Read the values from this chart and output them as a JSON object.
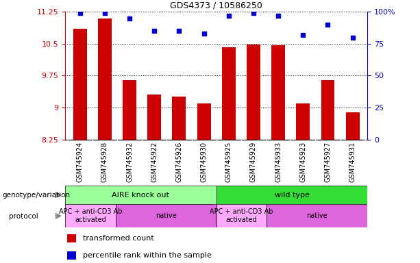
{
  "title": "GDS4373 / 10586250",
  "samples": [
    "GSM745924",
    "GSM745928",
    "GSM745932",
    "GSM745922",
    "GSM745926",
    "GSM745930",
    "GSM745925",
    "GSM745929",
    "GSM745933",
    "GSM745923",
    "GSM745927",
    "GSM745931"
  ],
  "bar_values": [
    10.85,
    11.1,
    9.65,
    9.3,
    9.25,
    9.1,
    10.42,
    10.48,
    10.46,
    9.1,
    9.65,
    8.88
  ],
  "dot_values": [
    99,
    99,
    95,
    85,
    85,
    83,
    97,
    99,
    97,
    82,
    90,
    80
  ],
  "ylim_left": [
    8.25,
    11.25
  ],
  "ylim_right": [
    0,
    100
  ],
  "yticks_left": [
    8.25,
    9.0,
    9.75,
    10.5,
    11.25
  ],
  "ytick_labels_left": [
    "8.25",
    "9",
    "9.75",
    "10.5",
    "11.25"
  ],
  "yticks_right": [
    0,
    25,
    50,
    75,
    100
  ],
  "ytick_labels_right": [
    "0",
    "25",
    "50",
    "75",
    "100%"
  ],
  "bar_color": "#CC0000",
  "dot_color": "#0000CC",
  "bar_bottom": 8.25,
  "groups": [
    {
      "label": "AIRE knock out",
      "start": 0,
      "end": 6,
      "color": "#99FF99"
    },
    {
      "label": "wild type",
      "start": 6,
      "end": 12,
      "color": "#33DD33"
    }
  ],
  "protocols": [
    {
      "label": "APC + anti-CD3 Ab\nactivated",
      "start": 0,
      "end": 2,
      "color": "#FFAAFF"
    },
    {
      "label": "native",
      "start": 2,
      "end": 6,
      "color": "#DD66DD"
    },
    {
      "label": "APC + anti-CD3 Ab\nactivated",
      "start": 6,
      "end": 8,
      "color": "#FFAAFF"
    },
    {
      "label": "native",
      "start": 8,
      "end": 12,
      "color": "#DD66DD"
    }
  ],
  "legend_bar_label": "transformed count",
  "legend_dot_label": "percentile rank within the sample",
  "genotype_label": "genotype/variation",
  "protocol_label": "protocol",
  "xtick_bg": "#CCCCCC"
}
